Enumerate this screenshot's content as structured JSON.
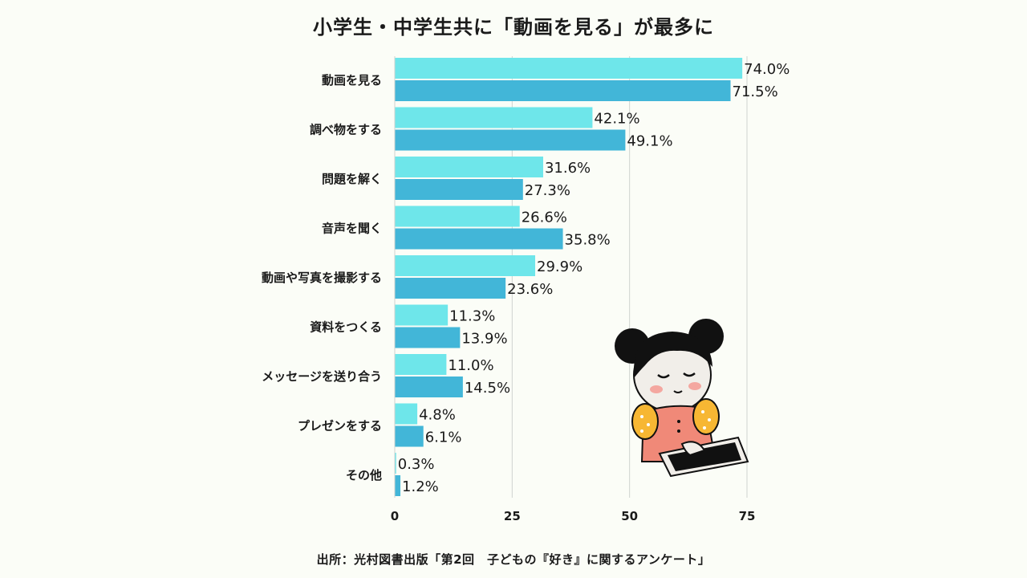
{
  "chart_data": {
    "type": "bar",
    "orientation": "horizontal",
    "title": "小学生・中学生共に「動画を見る」が最多に",
    "categories": [
      "動画を見る",
      "調べ物をする",
      "問題を解く",
      "音声を聞く",
      "動画や写真を撮影する",
      "資料をつくる",
      "メッセージを送り合う",
      "プレゼンをする",
      "その他"
    ],
    "series": [
      {
        "values": [
          74.0,
          42.1,
          31.6,
          26.6,
          29.9,
          11.3,
          11.0,
          4.8,
          0.3
        ],
        "labels": [
          "74.0%",
          "42.1%",
          "31.6%",
          "26.6%",
          "29.9%",
          "11.3%",
          "11.0%",
          "4.8%",
          "0.3%"
        ],
        "color": "#6ee6ea"
      },
      {
        "values": [
          71.5,
          49.1,
          27.3,
          35.8,
          23.6,
          13.9,
          14.5,
          6.1,
          1.2
        ],
        "labels": [
          "71.5%",
          "49.1%",
          "27.3%",
          "35.8%",
          "23.6%",
          "13.9%",
          "14.5%",
          "6.1%",
          "1.2%"
        ],
        "color": "#42b6d8"
      }
    ],
    "xlim": [
      0,
      75
    ],
    "xticks": [
      0,
      25,
      50,
      75
    ],
    "grid": true,
    "legend": "none"
  },
  "source": "出所：光村図書出版「第2回　子どもの『好き』に関するアンケート」",
  "illustration": {
    "icon": "girl-with-tablet-icon"
  }
}
